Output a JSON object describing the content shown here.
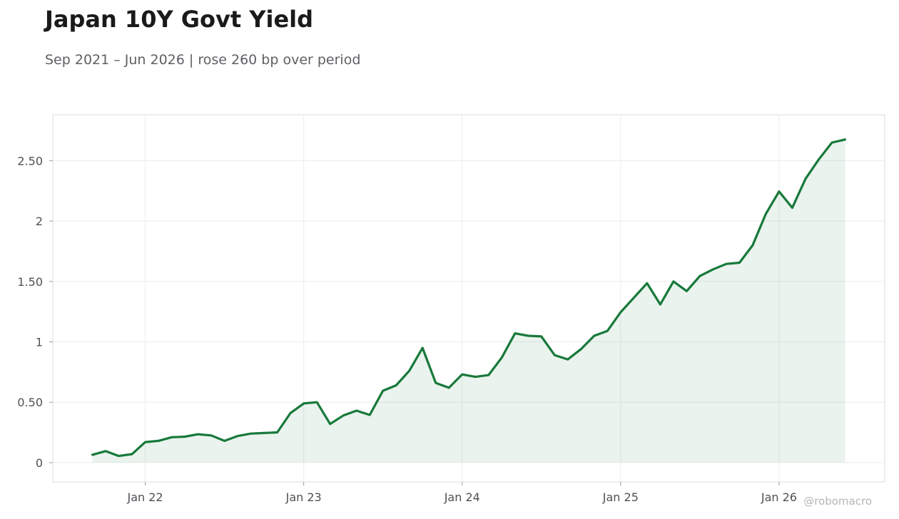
{
  "title": "Japan 10Y Govt Yield",
  "subtitle": "Sep 2021 – Jun 2026 | rose 260 bp over period",
  "watermark": "@robomacro",
  "colors": {
    "line": "#17793a",
    "fill": "#17793a",
    "grid": "#ececec",
    "frame": "#dcdcdc"
  },
  "chart_data": {
    "type": "area",
    "title": "Japan 10Y Govt Yield",
    "subtitle": "Sep 2021 – Jun 2026 | rose 260 bp over period",
    "xlabel": "",
    "ylabel": "",
    "grid": true,
    "legend": "none",
    "x_tick_labels": [
      "Jan 22",
      "Jan 23",
      "Jan 24",
      "Jan 25",
      "Jan 26"
    ],
    "x_tick_dates": [
      "2022-01",
      "2023-01",
      "2024-01",
      "2025-01",
      "2026-01"
    ],
    "y_tick_labels": [
      "0",
      "0.50",
      "1",
      "1.50",
      "2",
      "2.50"
    ],
    "y_tick_values": [
      0,
      0.5,
      1,
      1.5,
      2,
      2.5
    ],
    "xlim": [
      "2021-06",
      "2026-09"
    ],
    "ylim": [
      -0.16,
      2.88
    ],
    "series": [
      {
        "x": [
          "2021-09",
          "2021-10",
          "2021-11",
          "2021-12",
          "2022-01",
          "2022-02",
          "2022-03",
          "2022-04",
          "2022-05",
          "2022-06",
          "2022-07",
          "2022-08",
          "2022-09",
          "2022-10",
          "2022-11",
          "2022-12",
          "2023-01",
          "2023-02",
          "2023-03",
          "2023-04",
          "2023-05",
          "2023-06",
          "2023-07",
          "2023-08",
          "2023-09",
          "2023-10",
          "2023-11",
          "2023-12",
          "2024-01",
          "2024-02",
          "2024-03",
          "2024-04",
          "2024-05",
          "2024-06",
          "2024-07",
          "2024-08",
          "2024-09",
          "2024-10",
          "2024-11",
          "2024-12",
          "2025-01",
          "2025-02",
          "2025-03",
          "2025-04",
          "2025-05",
          "2025-06",
          "2025-07",
          "2025-08",
          "2025-09",
          "2025-10",
          "2025-11",
          "2025-12",
          "2026-01",
          "2026-02",
          "2026-03",
          "2026-04",
          "2026-05",
          "2026-06"
        ],
        "values": [
          0.065,
          0.095,
          0.055,
          0.07,
          0.17,
          0.18,
          0.21,
          0.215,
          0.235,
          0.225,
          0.18,
          0.22,
          0.24,
          0.245,
          0.25,
          0.41,
          0.49,
          0.5,
          0.32,
          0.39,
          0.43,
          0.395,
          0.595,
          0.64,
          0.76,
          0.95,
          0.66,
          0.62,
          0.73,
          0.71,
          0.725,
          0.87,
          1.07,
          1.05,
          1.045,
          0.89,
          0.855,
          0.94,
          1.05,
          1.09,
          1.245,
          1.365,
          1.485,
          1.31,
          1.5,
          1.42,
          1.545,
          1.6,
          1.645,
          1.655,
          1.8,
          2.06,
          2.245,
          2.11,
          2.35,
          2.51,
          2.65,
          2.675
        ]
      }
    ]
  }
}
